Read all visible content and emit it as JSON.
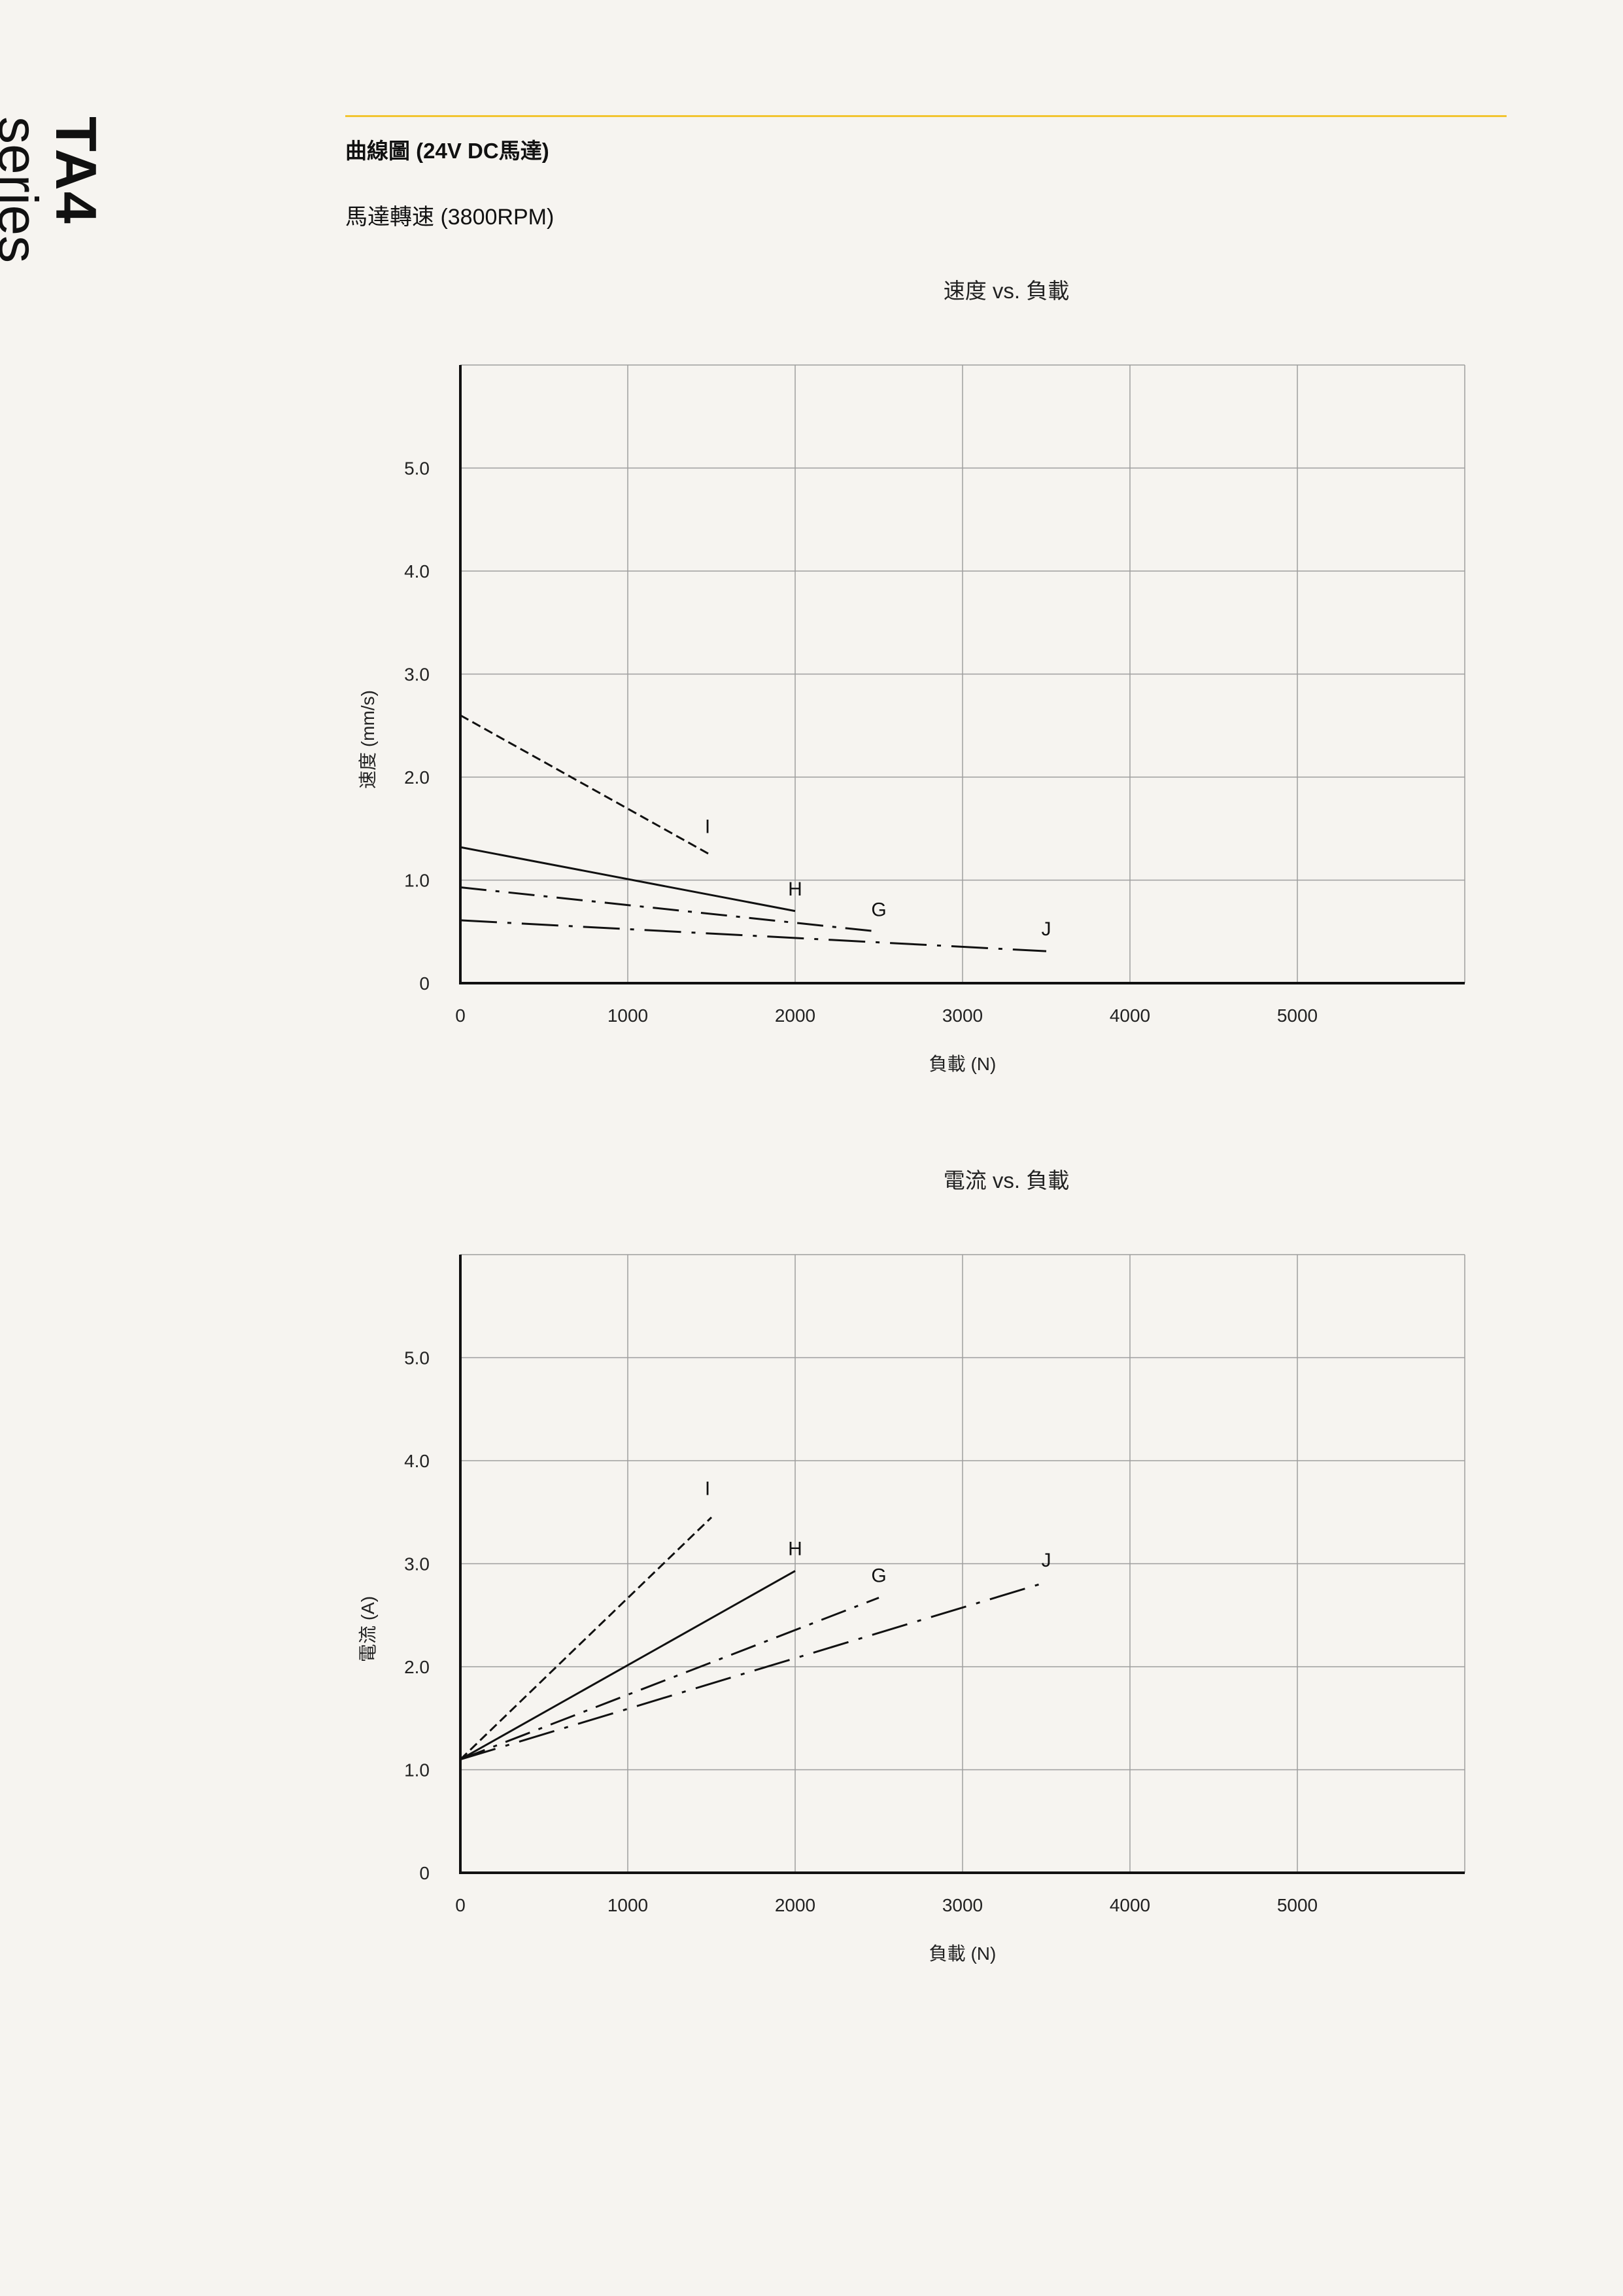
{
  "side": {
    "model": "TA4",
    "word": "series"
  },
  "header": {
    "heading": "曲線圖 (24V DC馬達)",
    "subheading": "馬達轉速 (3800RPM)"
  },
  "colors": {
    "accent_rule": "#f2c531",
    "background": "#f6f4f0",
    "ink": "#111111"
  },
  "chart_data": [
    {
      "type": "line",
      "title": "速度 vs. 負載",
      "xlabel": "負載 (N)",
      "ylabel": "速度 (mm/s)",
      "xlim": [
        0,
        6000
      ],
      "ylim": [
        0,
        6.0
      ],
      "xticks": [
        0,
        1000,
        2000,
        3000,
        4000,
        5000
      ],
      "xtick_labels": [
        "0",
        "1000",
        "2000",
        "3000",
        "4000",
        "5000"
      ],
      "yticks": [
        0,
        1.0,
        2.0,
        3.0,
        4.0,
        5.0
      ],
      "ytick_labels": [
        "0",
        "1.0",
        "2.0",
        "3.0",
        "4.0",
        "5.0"
      ],
      "grid": true,
      "series": [
        {
          "name": "I",
          "style": "dashed",
          "x": [
            0,
            1500
          ],
          "y": [
            2.6,
            1.24
          ]
        },
        {
          "name": "H",
          "style": "solid",
          "x": [
            0,
            2000
          ],
          "y": [
            1.32,
            0.7
          ]
        },
        {
          "name": "G",
          "style": "dashdot",
          "x": [
            0,
            2500
          ],
          "y": [
            0.93,
            0.5
          ]
        },
        {
          "name": "J",
          "style": "longdashdot",
          "x": [
            0,
            3500
          ],
          "y": [
            0.61,
            0.31
          ]
        }
      ]
    },
    {
      "type": "line",
      "title": "電流 vs. 負載",
      "xlabel": "負載 (N)",
      "ylabel": "電流 (A)",
      "xlim": [
        0,
        6000
      ],
      "ylim": [
        0,
        6.0
      ],
      "xticks": [
        0,
        1000,
        2000,
        3000,
        4000,
        5000
      ],
      "xtick_labels": [
        "0",
        "1000",
        "2000",
        "3000",
        "4000",
        "5000"
      ],
      "yticks": [
        0,
        1.0,
        2.0,
        3.0,
        4.0,
        5.0
      ],
      "ytick_labels": [
        "0",
        "1.0",
        "2.0",
        "3.0",
        "4.0",
        "5.0"
      ],
      "grid": true,
      "series": [
        {
          "name": "I",
          "style": "dashed",
          "x": [
            0,
            1500
          ],
          "y": [
            1.1,
            3.45
          ]
        },
        {
          "name": "H",
          "style": "solid",
          "x": [
            0,
            2000
          ],
          "y": [
            1.1,
            2.93
          ]
        },
        {
          "name": "G",
          "style": "dashdot",
          "x": [
            0,
            2500
          ],
          "y": [
            1.1,
            2.67
          ]
        },
        {
          "name": "J",
          "style": "longdashdot",
          "x": [
            0,
            3500
          ],
          "y": [
            1.1,
            2.82
          ]
        }
      ]
    }
  ]
}
